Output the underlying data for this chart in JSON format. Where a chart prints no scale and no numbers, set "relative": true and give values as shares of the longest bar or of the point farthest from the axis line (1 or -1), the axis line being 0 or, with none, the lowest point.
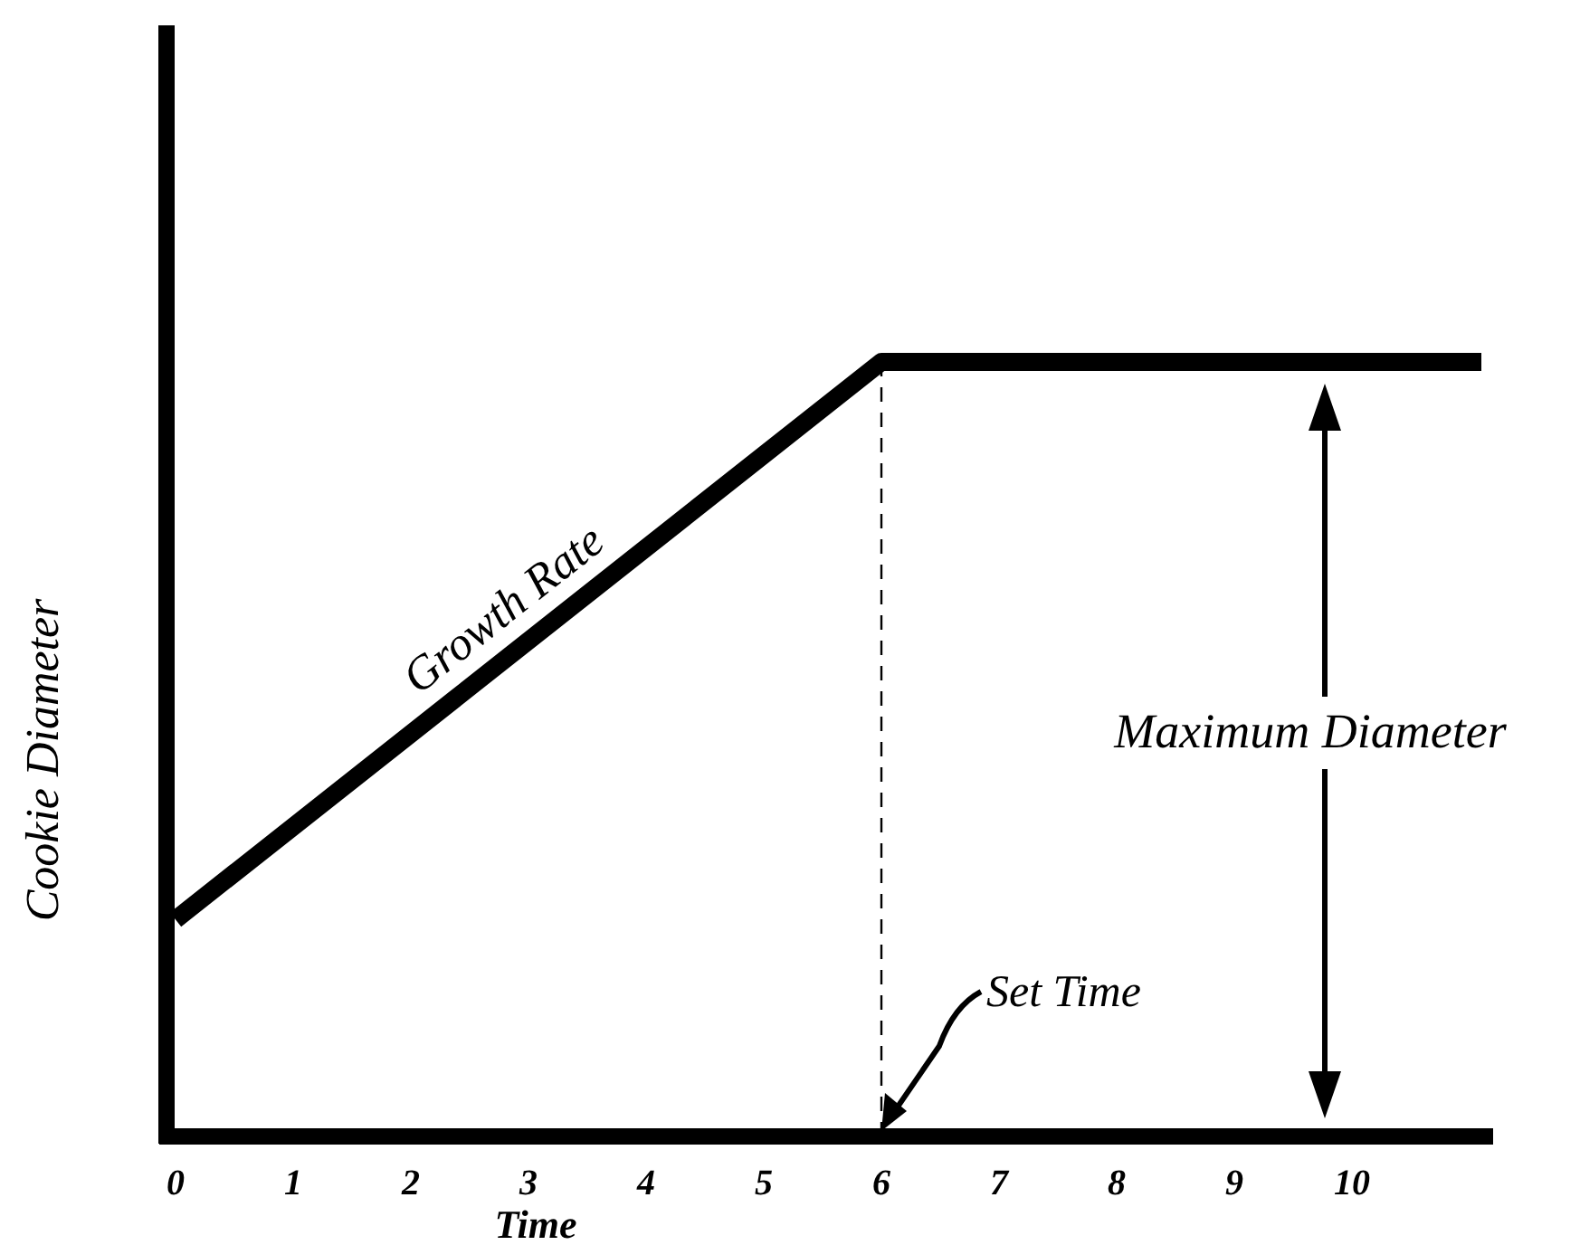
{
  "chart_data": {
    "type": "line",
    "relative": true,
    "xlabel": "Time",
    "ylabel": "Cookie Diameter",
    "xlim": [
      0,
      11.2
    ],
    "xticks": [
      0,
      1,
      2,
      3,
      4,
      5,
      6,
      7,
      8,
      9,
      10
    ],
    "x": [
      0,
      6,
      11.1
    ],
    "series": [
      {
        "color": "#000000",
        "values": [
          0.28,
          1,
          1
        ]
      }
    ],
    "ref_lines": [
      {
        "axis": "x",
        "value": 6,
        "line_style": "dashed",
        "color": "#000000"
      }
    ],
    "annotations": [
      {
        "text": "Growth Rate",
        "x": 3,
        "y": 0.64
      },
      "Maximum Diameter",
      "Set Time"
    ],
    "marker": "none",
    "line_style": "solid",
    "legend": false,
    "grid": false
  }
}
